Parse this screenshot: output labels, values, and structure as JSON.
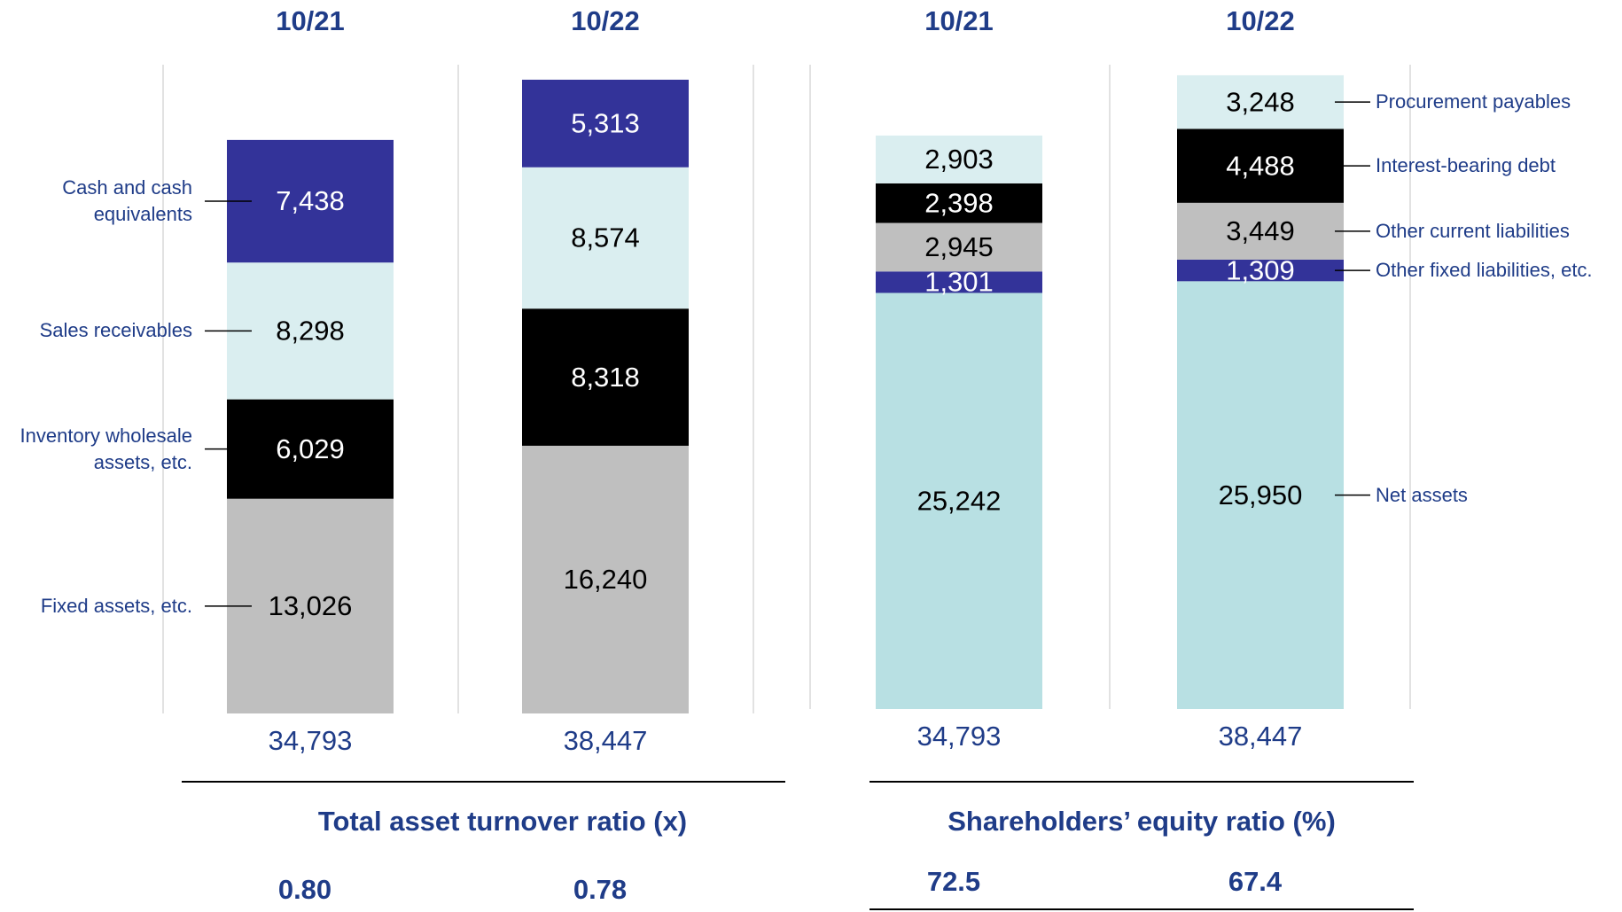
{
  "chart_data": [
    {
      "type": "bar",
      "stacked": true,
      "legend": "left",
      "categories": [
        "10/21",
        "10/22"
      ],
      "series": [
        {
          "name": "Fixed assets, etc.",
          "color": "#bfbfbf",
          "values": [
            13026,
            16240
          ],
          "value_labels": [
            "13,026",
            "16,240"
          ]
        },
        {
          "name": "Inventory wholesale assets, etc.",
          "color": "#000000",
          "values": [
            6029,
            8318
          ],
          "value_labels": [
            "6,029",
            "8,318"
          ]
        },
        {
          "name": "Sales receivables",
          "color": "#daeef0",
          "values": [
            8298,
            8574
          ],
          "value_labels": [
            "8,298",
            "8,574"
          ]
        },
        {
          "name": "Cash and cash equivalents",
          "color": "#333399",
          "values": [
            7438,
            5313
          ],
          "value_labels": [
            "7,438",
            "5,313"
          ]
        }
      ],
      "totals": [
        34793,
        38447
      ],
      "total_labels": [
        "34,793",
        "38,447"
      ],
      "ratio_title": "Total asset turnover ratio (x)",
      "ratios": [
        0.8,
        0.78
      ],
      "ratio_labels": [
        "0.80",
        "0.78"
      ]
    },
    {
      "type": "bar",
      "stacked": true,
      "legend": "right",
      "categories": [
        "10/21",
        "10/22"
      ],
      "series": [
        {
          "name": "Net assets",
          "color": "#b8e0e3",
          "values": [
            25242,
            25950
          ],
          "value_labels": [
            "25,242",
            "25,950"
          ]
        },
        {
          "name": "Other fixed liabilities, etc.",
          "color": "#333399",
          "values": [
            1301,
            1309
          ],
          "value_labels": [
            "1,301",
            "1,309"
          ]
        },
        {
          "name": "Other current liabilities",
          "color": "#bfbfbf",
          "values": [
            2945,
            3449
          ],
          "value_labels": [
            "2,945",
            "3,449"
          ]
        },
        {
          "name": "Interest-bearing debt",
          "color": "#000000",
          "values": [
            2398,
            4488
          ],
          "value_labels": [
            "2,398",
            "4,488"
          ]
        },
        {
          "name": "Procurement payables",
          "color": "#daeef0",
          "values": [
            2903,
            3248
          ],
          "value_labels": [
            "2,903",
            "3,248"
          ]
        }
      ],
      "totals": [
        34793,
        38447
      ],
      "total_labels": [
        "34,793",
        "38,447"
      ],
      "ratio_title": "Shareholders’ equity ratio (%)",
      "ratios": [
        72.5,
        67.4
      ]
    }
  ]
}
